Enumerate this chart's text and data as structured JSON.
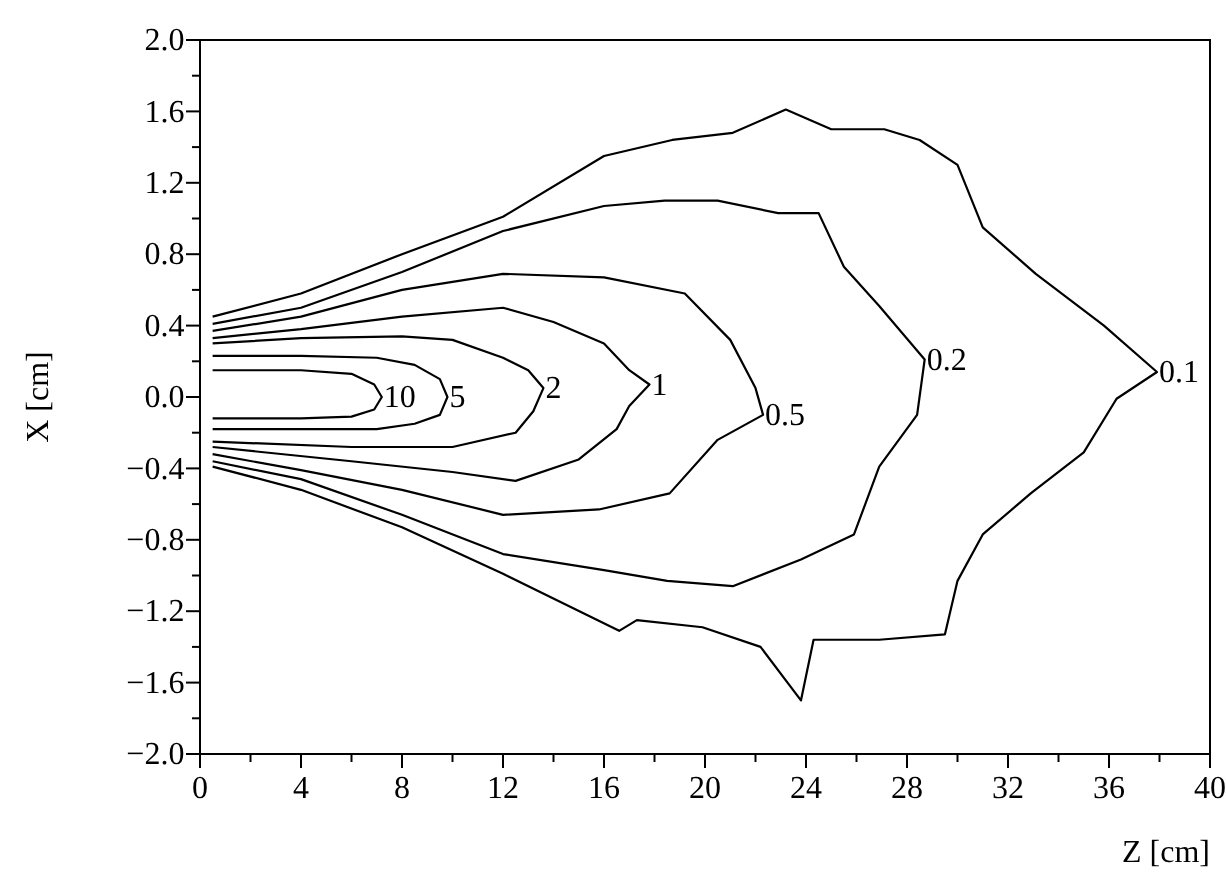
{
  "chart_data": {
    "type": "line",
    "xlabel": "Z [cm]",
    "ylabel": "X [cm]",
    "xlim": [
      0,
      40
    ],
    "ylim": [
      -2,
      2
    ],
    "grid": false,
    "marker": "none",
    "line_style": "solid",
    "xticks": [
      0,
      {
        "value": 2,
        "label": null
      },
      4,
      {
        "value": 6,
        "label": null
      },
      8,
      {
        "value": 10,
        "label": null
      },
      12,
      {
        "value": 14,
        "label": null
      },
      16,
      {
        "value": 18,
        "label": null
      },
      20,
      {
        "value": 22,
        "label": null
      },
      24,
      {
        "value": 26,
        "label": null
      },
      28,
      {
        "value": 30,
        "label": null
      },
      32,
      {
        "value": 34,
        "label": null
      },
      36,
      {
        "value": 38,
        "label": null
      },
      40
    ],
    "yticks": [
      {
        "value": -2,
        "label": "−2.0"
      },
      {
        "value": -1.8,
        "label": null
      },
      {
        "value": -1.6,
        "label": "−1.6"
      },
      {
        "value": -1.4,
        "label": null
      },
      {
        "value": -1.2,
        "label": "−1.2"
      },
      {
        "value": -1,
        "label": null
      },
      {
        "value": -0.8,
        "label": "−0.8"
      },
      {
        "value": -0.6,
        "label": null
      },
      {
        "value": -0.4,
        "label": "−0.4"
      },
      {
        "value": -0.2,
        "label": null
      },
      {
        "value": 0,
        "label": "0.0"
      },
      {
        "value": 0.2,
        "label": null
      },
      {
        "value": 0.4,
        "label": "0.4"
      },
      {
        "value": 0.6,
        "label": null
      },
      {
        "value": 0.8,
        "label": "0.8"
      },
      {
        "value": 1,
        "label": null
      },
      {
        "value": 1.2,
        "label": "1.2"
      },
      {
        "value": 1.4,
        "label": null
      },
      {
        "value": 1.6,
        "label": "1.6"
      },
      {
        "value": 1.8,
        "label": null
      },
      {
        "value": 2,
        "label": "2.0"
      }
    ],
    "series": [
      {
        "name": "10",
        "color": "#000000",
        "x": [
          0.5,
          4,
          6,
          6.9,
          7.2,
          6.9,
          6,
          4,
          0.5
        ],
        "values": [
          0.15,
          0.15,
          0.13,
          0.07,
          0,
          -0.07,
          -0.11,
          -0.12,
          -0.12
        ]
      },
      {
        "name": "5",
        "color": "#000000",
        "x": [
          0.5,
          4,
          7,
          8.5,
          9.5,
          9.8,
          9.5,
          8.5,
          7,
          4,
          0.5
        ],
        "values": [
          0.23,
          0.23,
          0.22,
          0.18,
          0.1,
          0,
          -0.1,
          -0.15,
          -0.18,
          -0.18,
          -0.18
        ]
      },
      {
        "name": "2",
        "color": "#000000",
        "x": [
          0.5,
          4,
          8,
          10,
          12,
          13,
          13.6,
          13.2,
          12.5,
          10,
          6,
          0.5
        ],
        "values": [
          0.3,
          0.33,
          0.34,
          0.32,
          0.22,
          0.15,
          0.05,
          -0.08,
          -0.2,
          -0.28,
          -0.28,
          -0.25
        ]
      },
      {
        "name": "1",
        "color": "#000000",
        "x": [
          0.5,
          4,
          8,
          12,
          14,
          16,
          17,
          17.8,
          17,
          16.5,
          15,
          12.5,
          10,
          6,
          0.5
        ],
        "values": [
          0.33,
          0.38,
          0.45,
          0.5,
          0.42,
          0.3,
          0.15,
          0.07,
          -0.05,
          -0.18,
          -0.35,
          -0.47,
          -0.42,
          -0.36,
          -0.28
        ]
      },
      {
        "name": "0.5",
        "color": "#000000",
        "x": [
          0.5,
          4,
          8,
          12,
          16,
          19.2,
          21,
          22,
          22.3,
          20.5,
          18.6,
          15.8,
          12,
          8,
          4,
          0.5
        ],
        "values": [
          0.37,
          0.45,
          0.6,
          0.69,
          0.67,
          0.58,
          0.32,
          0.05,
          -0.1,
          -0.24,
          -0.54,
          -0.63,
          -0.66,
          -0.52,
          -0.41,
          -0.32
        ]
      },
      {
        "name": "0.2",
        "color": "#000000",
        "x": [
          0.5,
          4,
          8,
          12,
          16,
          18.4,
          20.5,
          22.9,
          24.5,
          25.5,
          26.9,
          28.7,
          28.4,
          26.9,
          25.9,
          23.8,
          21.1,
          18.5,
          16,
          12,
          8,
          4,
          0.5
        ],
        "values": [
          0.41,
          0.5,
          0.7,
          0.93,
          1.07,
          1.1,
          1.1,
          1.03,
          1.03,
          0.73,
          0.51,
          0.21,
          -0.1,
          -0.39,
          -0.77,
          -0.91,
          -1.06,
          -1.03,
          -0.97,
          -0.88,
          -0.66,
          -0.46,
          -0.36
        ]
      },
      {
        "name": "0.1",
        "color": "#000000",
        "x": [
          0.5,
          4,
          8,
          12,
          16,
          18.7,
          21.1,
          23.2,
          25,
          27.1,
          28.5,
          30,
          31,
          33.1,
          35.8,
          37.9,
          36.3,
          35,
          32.9,
          31,
          30,
          29.5,
          26.9,
          24.3,
          23.8,
          22.2,
          19.9,
          17.3,
          16.6,
          12,
          8,
          4,
          0.5
        ],
        "values": [
          0.45,
          0.58,
          0.8,
          1.01,
          1.35,
          1.44,
          1.48,
          1.61,
          1.5,
          1.5,
          1.44,
          1.3,
          0.95,
          0.69,
          0.4,
          0.14,
          -0.01,
          -0.31,
          -0.54,
          -0.77,
          -1.03,
          -1.33,
          -1.36,
          -1.36,
          -1.7,
          -1.4,
          -1.29,
          -1.25,
          -1.31,
          -0.99,
          -0.73,
          -0.52,
          -0.39
        ]
      }
    ]
  }
}
